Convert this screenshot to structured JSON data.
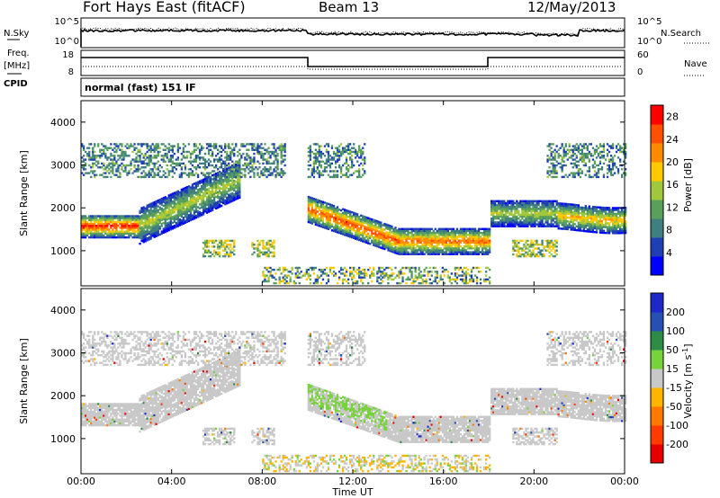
{
  "header": {
    "radar": "Fort Hays East (fitACF)",
    "beam": "Beam 13",
    "date": "12/May/2013"
  },
  "noise_panel": {
    "left_label": "N.Sky",
    "left_ticks": [
      "10^5",
      "10^0"
    ],
    "right_label": "N.Search",
    "right_ticks": [
      "10^5",
      "10^0"
    ]
  },
  "freq_panel": {
    "left_label_1": "Freq.",
    "left_label_2": "[MHz]",
    "left_ticks": [
      "18",
      "8"
    ],
    "right_label": "Nave",
    "right_ticks": [
      "60",
      "0"
    ],
    "cpid_label": "CPID",
    "cpid_text": "normal (fast) 151 IF"
  },
  "chart_data": [
    {
      "type": "heatmap",
      "name": "power",
      "ylabel": "Slant Range [km]",
      "xlabel": "Time UT",
      "x_ticks": [
        "00:00",
        "04:00",
        "08:00",
        "12:00",
        "16:00",
        "20:00",
        "00:00"
      ],
      "xlim_hours": [
        0,
        24
      ],
      "ylim_km": [
        180,
        4500
      ],
      "y_ticks": [
        1000,
        2000,
        3000,
        4000
      ],
      "colorbar": {
        "label": "Power [dB]",
        "ticks": [
          4,
          8,
          12,
          16,
          20,
          24,
          28
        ],
        "range": [
          0,
          30
        ],
        "colors": [
          "#0000ff",
          "#1f3fb4",
          "#3f7f7f",
          "#5aa05a",
          "#a0c83c",
          "#ffc800",
          "#ff8c00",
          "#ff5000",
          "#ff0000"
        ]
      },
      "echo_bands": [
        {
          "start_h": 0.0,
          "end_h": 2.5,
          "range_km": 1550,
          "power_db": 28
        },
        {
          "start_h": 2.5,
          "end_h": 7.0,
          "range_km": 2300,
          "power_db": 16
        },
        {
          "start_h": 10.0,
          "end_h": 14.0,
          "range_km": 1450,
          "power_db": 26
        },
        {
          "start_h": 14.0,
          "end_h": 18.0,
          "range_km": 1150,
          "power_db": 24
        },
        {
          "start_h": 18.0,
          "end_h": 21.0,
          "range_km": 1850,
          "power_db": 16
        },
        {
          "start_h": 21.0,
          "end_h": 24.0,
          "range_km": 1750,
          "power_db": 20
        }
      ]
    },
    {
      "type": "heatmap",
      "name": "velocity",
      "ylabel": "Slant Range [km]",
      "xlabel": "Time UT",
      "x_ticks": [
        "00:00",
        "04:00",
        "08:00",
        "12:00",
        "16:00",
        "20:00",
        "00:00"
      ],
      "xlim_hours": [
        0,
        24
      ],
      "ylim_km": [
        180,
        4500
      ],
      "y_ticks": [
        1000,
        2000,
        3000,
        4000
      ],
      "colorbar": {
        "label": "Velocity [m s^-1]",
        "ticks": [
          200,
          100,
          50,
          15,
          -15,
          -50,
          -100,
          -200
        ],
        "colors": [
          "#1e28c8",
          "#2850b4",
          "#2d8c46",
          "#78d23c",
          "#c8c8c8",
          "#ffb400",
          "#ff7800",
          "#ff3c00",
          "#e60000"
        ]
      },
      "dominant_velocity_ms": 0
    }
  ],
  "x_axis": {
    "ticks": [
      "00:00",
      "04:00",
      "08:00",
      "12:00",
      "16:00",
      "20:00",
      "00:00"
    ],
    "label": "Time UT"
  },
  "power_panel": {
    "ylabel": "Slant Range [km]",
    "cbar_label": "Power [dB]",
    "cbar_ticks": [
      "28",
      "24",
      "20",
      "16",
      "12",
      "8",
      "4"
    ]
  },
  "velocity_panel": {
    "ylabel": "Slant Range [km]",
    "cbar_label": "Velocity [m s",
    "cbar_label_sup": "-1",
    "cbar_label_end": "]",
    "cbar_ticks": [
      "200",
      "100",
      "50",
      "15",
      "-15",
      "-50",
      "-100",
      "-200"
    ]
  }
}
